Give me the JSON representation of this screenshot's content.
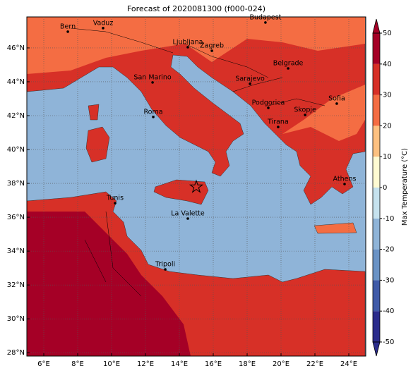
{
  "title": "Forecast of 2020081300 (f000-024)",
  "map": {
    "xlim": [
      5,
      25
    ],
    "ylim": [
      27.8,
      47.83
    ],
    "xticks": [
      {
        "value": 6,
        "label": "6°E"
      },
      {
        "value": 8,
        "label": "8°E"
      },
      {
        "value": 10,
        "label": "10°E"
      },
      {
        "value": 12,
        "label": "12°E"
      },
      {
        "value": 14,
        "label": "14°E"
      },
      {
        "value": 16,
        "label": "16°E"
      },
      {
        "value": 18,
        "label": "18°E"
      },
      {
        "value": 20,
        "label": "20°E"
      },
      {
        "value": 22,
        "label": "22°E"
      },
      {
        "value": 24,
        "label": "24°E"
      }
    ],
    "yticks": [
      {
        "value": 28,
        "label": "28°N"
      },
      {
        "value": 30,
        "label": "30°N"
      },
      {
        "value": 32,
        "label": "32°N"
      },
      {
        "value": 34,
        "label": "34°N"
      },
      {
        "value": 36,
        "label": "36°N"
      },
      {
        "value": 38,
        "label": "38°N"
      },
      {
        "value": 40,
        "label": "40°N"
      },
      {
        "value": 42,
        "label": "42°N"
      },
      {
        "value": 44,
        "label": "44°N"
      },
      {
        "value": 46,
        "label": "46°N"
      }
    ],
    "grid": true,
    "cities": [
      {
        "name": "Bern",
        "lon": 7.42,
        "lat": 46.96
      },
      {
        "name": "Vaduz",
        "lon": 9.5,
        "lat": 47.17
      },
      {
        "name": "Budapest",
        "lon": 19.08,
        "lat": 47.5
      },
      {
        "name": "Ljubljana",
        "lon": 14.5,
        "lat": 46.04
      },
      {
        "name": "Zagreb",
        "lon": 15.92,
        "lat": 45.83
      },
      {
        "name": "Belgrade",
        "lon": 20.42,
        "lat": 44.79
      },
      {
        "name": "San Marino",
        "lon": 12.42,
        "lat": 43.96
      },
      {
        "name": "Sarajevo",
        "lon": 18.17,
        "lat": 43.88
      },
      {
        "name": "Sofia",
        "lon": 23.29,
        "lat": 42.71
      },
      {
        "name": "Podgorica",
        "lon": 19.25,
        "lat": 42.46
      },
      {
        "name": "Skopje",
        "lon": 21.42,
        "lat": 42.04
      },
      {
        "name": "Roma",
        "lon": 12.46,
        "lat": 41.92
      },
      {
        "name": "Tirana",
        "lon": 19.83,
        "lat": 41.33
      },
      {
        "name": "Athens",
        "lon": 23.75,
        "lat": 37.96
      },
      {
        "name": "Tunis",
        "lon": 10.21,
        "lat": 36.83
      },
      {
        "name": "La Valette",
        "lon": 14.5,
        "lat": 35.92
      },
      {
        "name": "Tripoli",
        "lon": 13.17,
        "lat": 32.92
      }
    ],
    "forecast_point": {
      "lon": 15.0,
      "lat": 37.79
    }
  },
  "colorbar": {
    "label": "Max Temperature (°C)",
    "lim": [
      -50,
      50
    ],
    "ticks": [
      -50,
      -40,
      -30,
      -20,
      -10,
      0,
      10,
      20,
      30,
      40,
      50
    ],
    "colors": [
      "#2b2c8c",
      "#3f5aa8",
      "#6a93c6",
      "#8fb4d8",
      "#c6e2ee",
      "#fffbd2",
      "#fdc181",
      "#f46d43",
      "#d73027",
      "#a50026"
    ],
    "extend": "both"
  }
}
